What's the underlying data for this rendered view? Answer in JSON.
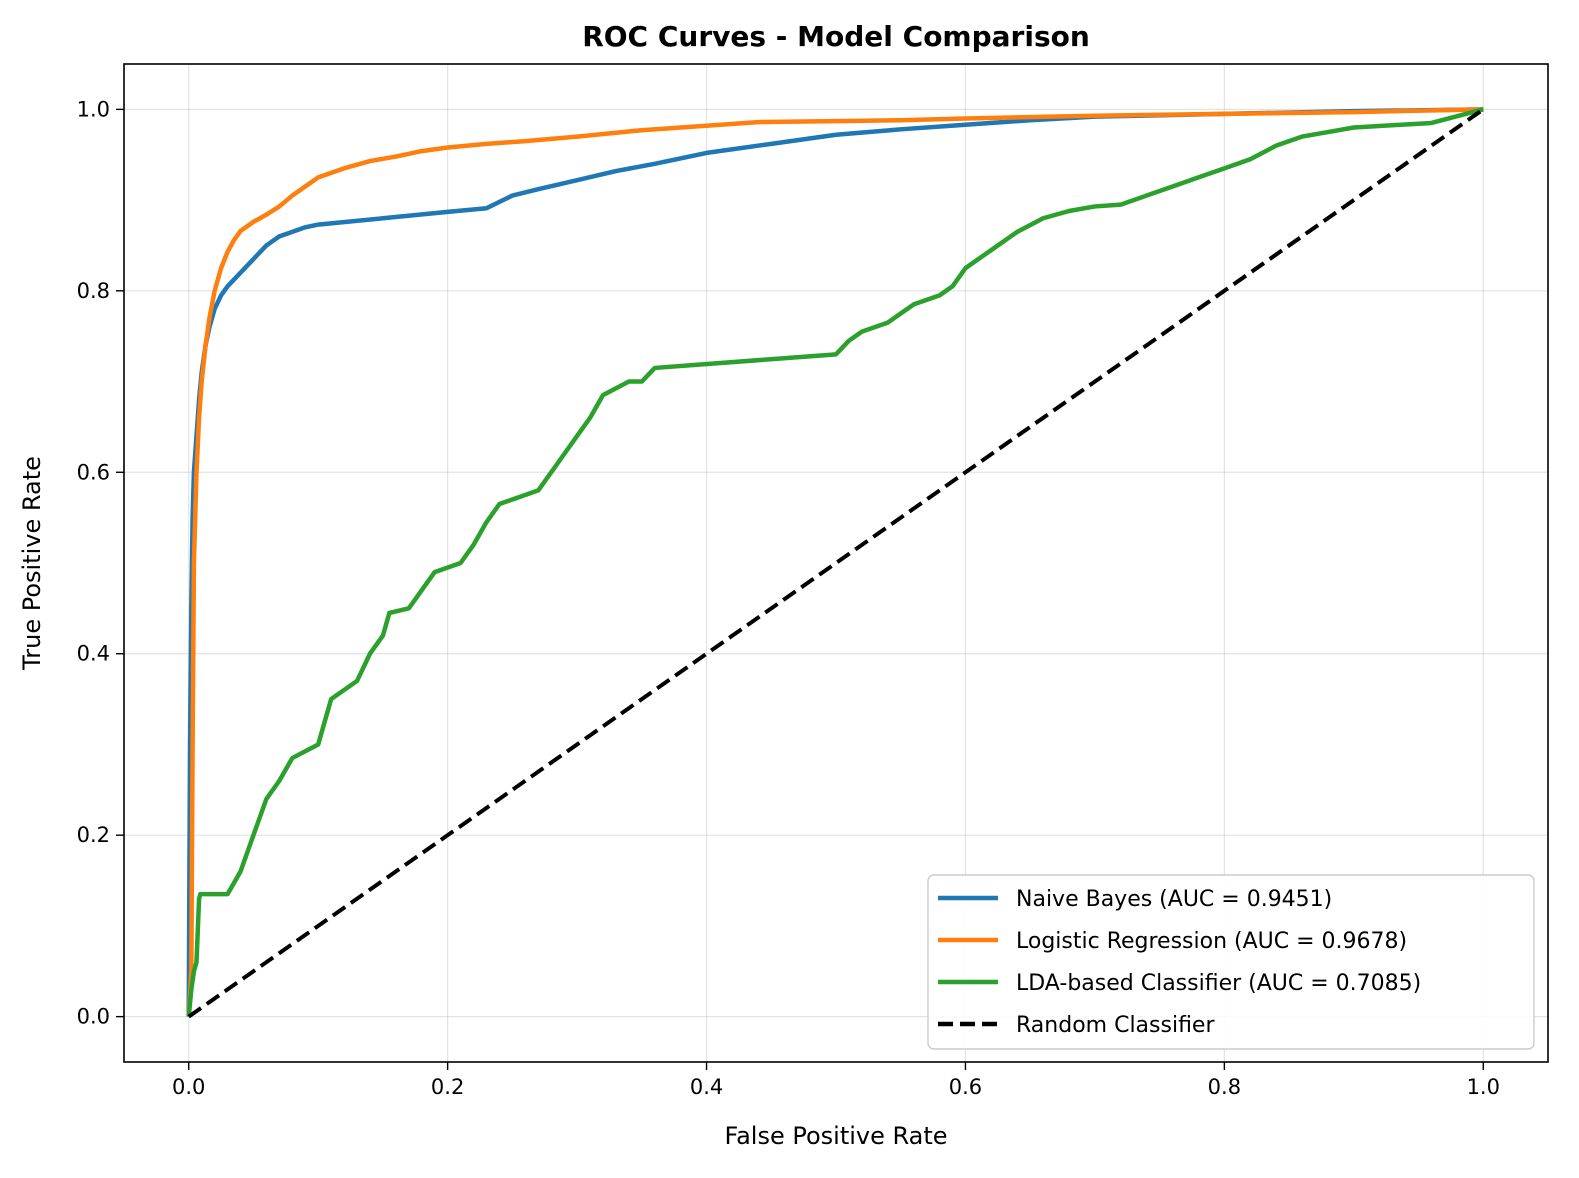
{
  "chart_data": {
    "type": "line",
    "title": "ROC Curves - Model Comparison",
    "xlabel": "False Positive Rate",
    "ylabel": "True Positive Rate",
    "xlim": [
      -0.05,
      1.05
    ],
    "ylim": [
      -0.05,
      1.05
    ],
    "xticks": [
      0.0,
      0.2,
      0.4,
      0.6,
      0.8,
      1.0
    ],
    "yticks": [
      0.0,
      0.2,
      0.4,
      0.6,
      0.8,
      1.0
    ],
    "xtick_labels": [
      "0.0",
      "0.2",
      "0.4",
      "0.6",
      "0.8",
      "1.0"
    ],
    "ytick_labels": [
      "0.0",
      "0.2",
      "0.4",
      "0.6",
      "0.8",
      "1.0"
    ],
    "grid": true,
    "legend_position": "bottom-right",
    "series": [
      {
        "name": "Naive Bayes (AUC = 0.9451)",
        "color": "#1f77b4",
        "style": "solid",
        "x": [
          0.0,
          0.001,
          0.002,
          0.003,
          0.004,
          0.006,
          0.008,
          0.01,
          0.013,
          0.016,
          0.02,
          0.025,
          0.03,
          0.04,
          0.05,
          0.06,
          0.07,
          0.08,
          0.09,
          0.1,
          0.15,
          0.2,
          0.23,
          0.24,
          0.25,
          0.27,
          0.3,
          0.33,
          0.36,
          0.4,
          0.45,
          0.5,
          0.55,
          0.6,
          0.65,
          0.7,
          0.8,
          0.9,
          1.0
        ],
        "y": [
          0.0,
          0.3,
          0.45,
          0.55,
          0.6,
          0.64,
          0.68,
          0.71,
          0.74,
          0.76,
          0.78,
          0.795,
          0.805,
          0.82,
          0.835,
          0.85,
          0.86,
          0.865,
          0.87,
          0.873,
          0.88,
          0.887,
          0.891,
          0.898,
          0.905,
          0.912,
          0.922,
          0.932,
          0.94,
          0.952,
          0.962,
          0.972,
          0.978,
          0.983,
          0.988,
          0.992,
          0.995,
          0.998,
          1.0
        ]
      },
      {
        "name": "Logistic Regression (AUC = 0.9678)",
        "color": "#ff7f0e",
        "style": "solid",
        "x": [
          0.0,
          0.002,
          0.003,
          0.004,
          0.006,
          0.008,
          0.01,
          0.013,
          0.016,
          0.02,
          0.025,
          0.03,
          0.035,
          0.04,
          0.05,
          0.06,
          0.07,
          0.08,
          0.09,
          0.1,
          0.12,
          0.14,
          0.16,
          0.18,
          0.2,
          0.23,
          0.26,
          0.3,
          0.35,
          0.44,
          0.5,
          0.55,
          0.6,
          0.7,
          0.8,
          0.9,
          1.0
        ],
        "y": [
          0.0,
          0.05,
          0.3,
          0.5,
          0.6,
          0.66,
          0.7,
          0.74,
          0.77,
          0.8,
          0.825,
          0.843,
          0.856,
          0.866,
          0.876,
          0.884,
          0.893,
          0.905,
          0.915,
          0.925,
          0.935,
          0.943,
          0.948,
          0.954,
          0.958,
          0.962,
          0.965,
          0.97,
          0.977,
          0.986,
          0.987,
          0.988,
          0.99,
          0.993,
          0.995,
          0.997,
          1.0
        ]
      },
      {
        "name": "LDA-based Classifier (AUC = 0.7085)",
        "color": "#2ca02c",
        "style": "solid",
        "x": [
          0.0,
          0.002,
          0.004,
          0.006,
          0.008,
          0.009,
          0.03,
          0.04,
          0.05,
          0.06,
          0.07,
          0.08,
          0.1,
          0.11,
          0.13,
          0.14,
          0.15,
          0.155,
          0.17,
          0.18,
          0.19,
          0.21,
          0.22,
          0.23,
          0.24,
          0.25,
          0.27,
          0.28,
          0.29,
          0.3,
          0.31,
          0.32,
          0.34,
          0.35,
          0.36,
          0.5,
          0.51,
          0.52,
          0.54,
          0.55,
          0.56,
          0.57,
          0.58,
          0.59,
          0.6,
          0.62,
          0.64,
          0.66,
          0.68,
          0.7,
          0.72,
          0.74,
          0.76,
          0.78,
          0.8,
          0.82,
          0.84,
          0.86,
          0.88,
          0.9,
          0.96,
          1.0
        ],
        "y": [
          0.0,
          0.03,
          0.05,
          0.06,
          0.13,
          0.135,
          0.135,
          0.16,
          0.2,
          0.24,
          0.26,
          0.285,
          0.3,
          0.35,
          0.37,
          0.4,
          0.42,
          0.445,
          0.45,
          0.47,
          0.49,
          0.5,
          0.52,
          0.545,
          0.565,
          0.57,
          0.58,
          0.6,
          0.62,
          0.64,
          0.66,
          0.685,
          0.7,
          0.7,
          0.715,
          0.73,
          0.745,
          0.755,
          0.765,
          0.775,
          0.785,
          0.79,
          0.795,
          0.805,
          0.825,
          0.845,
          0.865,
          0.88,
          0.888,
          0.893,
          0.895,
          0.905,
          0.915,
          0.925,
          0.935,
          0.945,
          0.96,
          0.97,
          0.975,
          0.98,
          0.985,
          1.0
        ]
      },
      {
        "name": "Random Classifier",
        "color": "#000000",
        "style": "dashed",
        "x": [
          0.0,
          1.0
        ],
        "y": [
          0.0,
          1.0
        ]
      }
    ]
  }
}
